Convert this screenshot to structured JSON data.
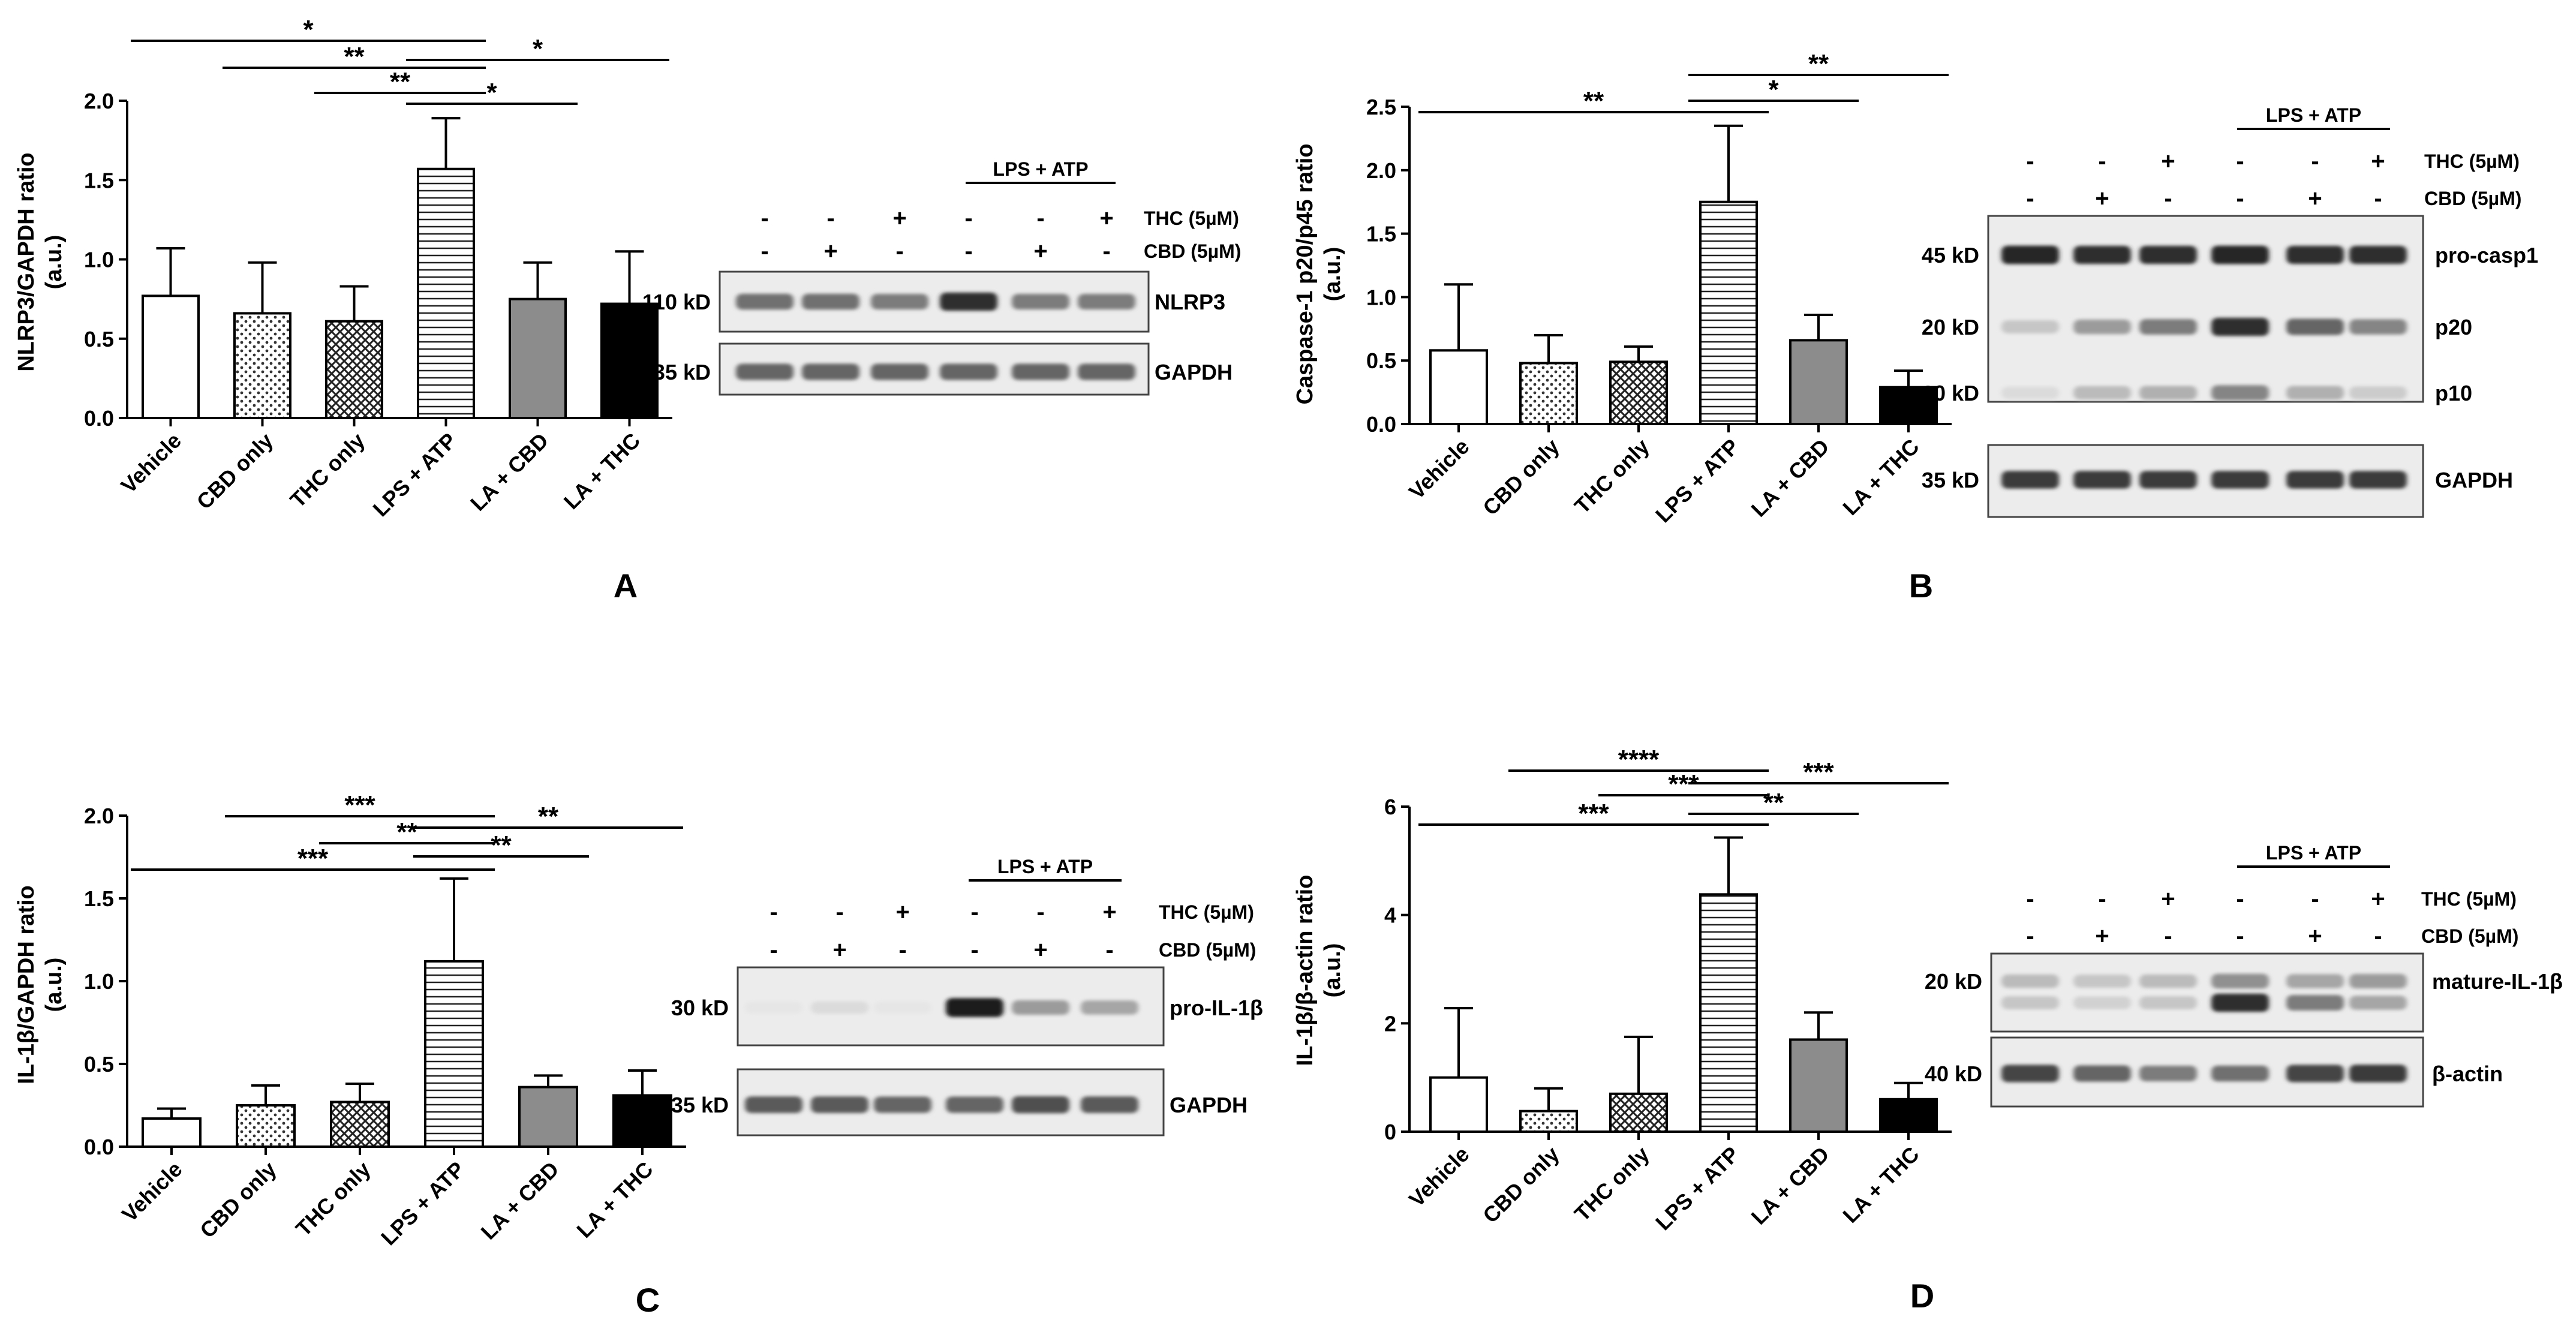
{
  "chart_data": [
    {
      "panel": "A",
      "type": "bar",
      "ylabel_line1": "NLRP3/GAPDH ratio",
      "ylabel_line2": "(a.u.)",
      "categories": [
        "Vehicle",
        "CBD only",
        "THC only",
        "LPS + ATP",
        "LA + CBD",
        "LA + THC"
      ],
      "values": [
        0.77,
        0.66,
        0.61,
        1.57,
        0.75,
        0.72
      ],
      "errors": [
        0.3,
        0.32,
        0.22,
        0.32,
        0.23,
        0.33
      ],
      "ylim": [
        0,
        2.0
      ],
      "yticks": [
        "0.0",
        "0.5",
        "1.0",
        "1.5",
        "2.0"
      ],
      "significance": [
        {
          "from": 0,
          "to": 3,
          "label": "*"
        },
        {
          "from": 1,
          "to": 3,
          "label": "**"
        },
        {
          "from": 2,
          "to": 3,
          "label": "**"
        },
        {
          "from": 3,
          "to": 5,
          "label": "*"
        },
        {
          "from": 3,
          "to": 4,
          "label": "*"
        }
      ]
    },
    {
      "panel": "B",
      "type": "bar",
      "ylabel_line1": "Caspase-1 p20/p45 ratio",
      "ylabel_line2": "(a.u.)",
      "categories": [
        "Vehicle",
        "CBD only",
        "THC only",
        "LPS + ATP",
        "LA + CBD",
        "LA + THC"
      ],
      "values": [
        0.58,
        0.48,
        0.49,
        1.75,
        0.66,
        0.29
      ],
      "errors": [
        0.52,
        0.22,
        0.12,
        0.6,
        0.2,
        0.13
      ],
      "ylim": [
        0,
        2.5
      ],
      "yticks": [
        "0.0",
        "0.5",
        "1.0",
        "1.5",
        "2.0",
        "2.5"
      ],
      "significance": [
        {
          "from": 0,
          "to": 3,
          "label": "**"
        },
        {
          "from": 3,
          "to": 5,
          "label": "**"
        },
        {
          "from": 3,
          "to": 4,
          "label": "*"
        }
      ]
    },
    {
      "panel": "C",
      "type": "bar",
      "ylabel_line1": "IL-1β/GAPDH ratio",
      "ylabel_line2": "(a.u.)",
      "categories": [
        "Vehicle",
        "CBD only",
        "THC only",
        "LPS + ATP",
        "LA + CBD",
        "LA + THC"
      ],
      "values": [
        0.17,
        0.25,
        0.27,
        1.12,
        0.36,
        0.31
      ],
      "errors": [
        0.06,
        0.12,
        0.11,
        0.5,
        0.07,
        0.15
      ],
      "ylim": [
        0,
        2.0
      ],
      "yticks": [
        "0.0",
        "0.5",
        "1.0",
        "1.5",
        "2.0"
      ],
      "significance": [
        {
          "from": 1,
          "to": 3,
          "label": "***"
        },
        {
          "from": 3,
          "to": 5,
          "label": "**"
        },
        {
          "from": 2,
          "to": 3,
          "label": "**"
        },
        {
          "from": 3,
          "to": 4,
          "label": "**"
        },
        {
          "from": 0,
          "to": 3,
          "label": "***"
        }
      ]
    },
    {
      "panel": "D",
      "type": "bar",
      "ylabel_line1": "IL-1β/β-actin ratio",
      "ylabel_line2": "(a.u.)",
      "categories": [
        "Vehicle",
        "CBD only",
        "THC only",
        "LPS + ATP",
        "LA + CBD",
        "LA + THC"
      ],
      "values": [
        1.0,
        0.38,
        0.7,
        4.38,
        1.7,
        0.6
      ],
      "errors": [
        1.28,
        0.42,
        1.05,
        1.05,
        0.5,
        0.3
      ],
      "ylim": [
        0,
        6
      ],
      "yticks": [
        "0",
        "2",
        "4",
        "6"
      ],
      "significance": [
        {
          "from": 1,
          "to": 3,
          "label": "****"
        },
        {
          "from": 2,
          "to": 3,
          "label": "***"
        },
        {
          "from": 3,
          "to": 5,
          "label": "***"
        },
        {
          "from": 3,
          "to": 4,
          "label": "**"
        },
        {
          "from": 0,
          "to": 3,
          "label": "***"
        }
      ]
    }
  ],
  "bar_styles": [
    {
      "fill": "#ffffff",
      "pattern": "none"
    },
    {
      "fill": "#ffffff",
      "pattern": "dots"
    },
    {
      "fill": "#ffffff",
      "pattern": "crosshatch"
    },
    {
      "fill": "#ffffff",
      "pattern": "hlines"
    },
    {
      "fill": "#8c8c8c",
      "pattern": "none"
    },
    {
      "fill": "#000000",
      "pattern": "none"
    }
  ],
  "blots": [
    {
      "panel": "A",
      "group_label": "LPS + ATP",
      "thc_label": "THC (5µM)",
      "cbd_label": "CBD (5µM)",
      "thc": [
        "-",
        "-",
        "+",
        "-",
        "-",
        "+"
      ],
      "cbd": [
        "-",
        "+",
        "-",
        "-",
        "+",
        "-"
      ],
      "strips": [
        {
          "mw": "110 kD",
          "name": "NLRP3",
          "bands": [
            [
              0.55
            ],
            [
              0.55
            ],
            [
              0.5
            ],
            [
              0.85
            ],
            [
              0.5
            ],
            [
              0.5
            ]
          ]
        },
        {
          "mw": "35 kD",
          "name": "GAPDH",
          "bands": [
            [
              0.6
            ],
            [
              0.6
            ],
            [
              0.6
            ],
            [
              0.6
            ],
            [
              0.6
            ],
            [
              0.6
            ]
          ]
        }
      ]
    },
    {
      "panel": "B",
      "group_label": "LPS + ATP",
      "thc_label": "THC (5µM)",
      "cbd_label": "CBD (5µM)",
      "thc": [
        "-",
        "-",
        "+",
        "-",
        "-",
        "+"
      ],
      "cbd": [
        "-",
        "+",
        "-",
        "-",
        "+",
        "-"
      ],
      "strips": [
        {
          "mw": "45 kD / 20 kD / 10 kD",
          "names": [
            "pro-casp1",
            "p20",
            "p10"
          ],
          "bands": [
            [
              0.9,
              0.15,
              0.05
            ],
            [
              0.85,
              0.35,
              0.2
            ],
            [
              0.85,
              0.5,
              0.25
            ],
            [
              0.9,
              0.85,
              0.45
            ],
            [
              0.85,
              0.6,
              0.25
            ],
            [
              0.85,
              0.45,
              0.12
            ]
          ]
        },
        {
          "mw": "35 kD",
          "name": "GAPDH",
          "bands": [
            [
              0.8
            ],
            [
              0.8
            ],
            [
              0.8
            ],
            [
              0.8
            ],
            [
              0.8
            ],
            [
              0.8
            ]
          ]
        }
      ]
    },
    {
      "panel": "C",
      "group_label": "LPS + ATP",
      "thc_label": "THC (5µM)",
      "cbd_label": "CBD (5µM)",
      "thc": [
        "-",
        "-",
        "+",
        "-",
        "-",
        "+"
      ],
      "cbd": [
        "-",
        "+",
        "-",
        "-",
        "+",
        "-"
      ],
      "strips": [
        {
          "mw": "30 kD",
          "name": "pro-IL-1β",
          "bands": [
            [
              0.0
            ],
            [
              0.05
            ],
            [
              0.0
            ],
            [
              0.95
            ],
            [
              0.35
            ],
            [
              0.3
            ]
          ]
        },
        {
          "mw": "35 kD",
          "name": "GAPDH",
          "bands": [
            [
              0.65
            ],
            [
              0.65
            ],
            [
              0.6
            ],
            [
              0.6
            ],
            [
              0.7
            ],
            [
              0.65
            ]
          ]
        }
      ]
    },
    {
      "panel": "D",
      "group_label": "LPS + ATP",
      "thc_label": "THC (5µM)",
      "cbd_label": "CBD (5µM)",
      "thc": [
        "-",
        "-",
        "+",
        "-",
        "-",
        "+"
      ],
      "cbd": [
        "-",
        "+",
        "-",
        "-",
        "+",
        "-"
      ],
      "strips": [
        {
          "mw": "20 kD",
          "name": "mature-IL-1β",
          "bands": [
            [
              0.2,
              0.15
            ],
            [
              0.15,
              0.1
            ],
            [
              0.2,
              0.15
            ],
            [
              0.4,
              0.85
            ],
            [
              0.3,
              0.5
            ],
            [
              0.35,
              0.3
            ]
          ]
        },
        {
          "mw": "40 kD",
          "name": "β-actin",
          "bands": [
            [
              0.75
            ],
            [
              0.6
            ],
            [
              0.5
            ],
            [
              0.55
            ],
            [
              0.75
            ],
            [
              0.8
            ]
          ]
        }
      ]
    }
  ],
  "panel_letters": [
    "A",
    "B",
    "C",
    "D"
  ]
}
